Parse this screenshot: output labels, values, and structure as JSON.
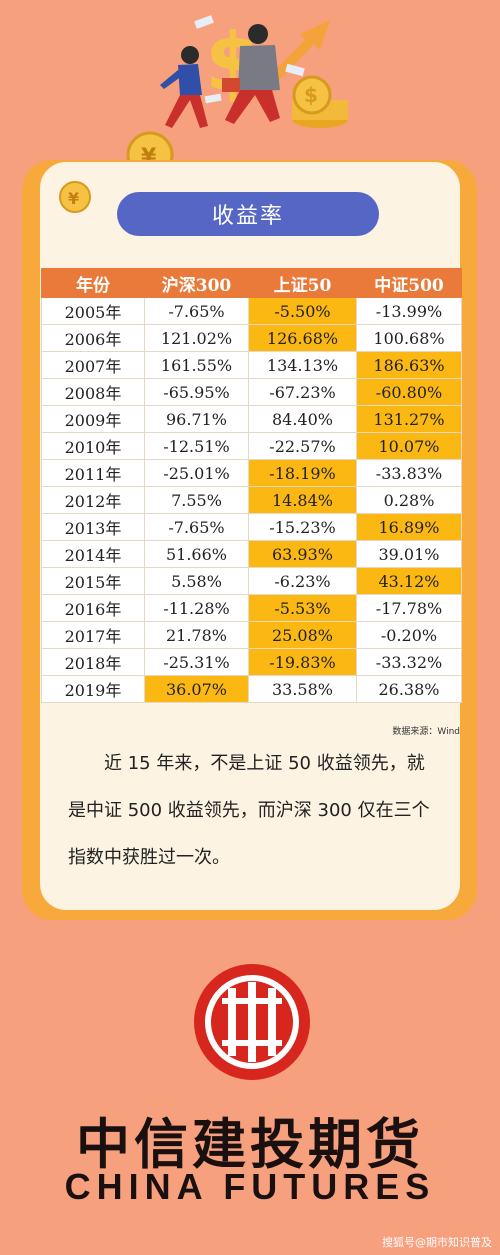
{
  "header": {
    "title": "收益率"
  },
  "table": {
    "columns": [
      "年份",
      "沪深300",
      "上证50",
      "中证500"
    ],
    "rows": [
      {
        "year": "2005年",
        "hs300": "-7.65%",
        "sz50": "-5.50%",
        "zz500": "-13.99%",
        "winner": 2
      },
      {
        "year": "2006年",
        "hs300": "121.02%",
        "sz50": "126.68%",
        "zz500": "100.68%",
        "winner": 2
      },
      {
        "year": "2007年",
        "hs300": "161.55%",
        "sz50": "134.13%",
        "zz500": "186.63%",
        "winner": 3
      },
      {
        "year": "2008年",
        "hs300": "-65.95%",
        "sz50": "-67.23%",
        "zz500": "-60.80%",
        "winner": 3
      },
      {
        "year": "2009年",
        "hs300": "96.71%",
        "sz50": "84.40%",
        "zz500": "131.27%",
        "winner": 3
      },
      {
        "year": "2010年",
        "hs300": "-12.51%",
        "sz50": "-22.57%",
        "zz500": "10.07%",
        "winner": 3
      },
      {
        "year": "2011年",
        "hs300": "-25.01%",
        "sz50": "-18.19%",
        "zz500": "-33.83%",
        "winner": 2
      },
      {
        "year": "2012年",
        "hs300": "7.55%",
        "sz50": "14.84%",
        "zz500": "0.28%",
        "winner": 2
      },
      {
        "year": "2013年",
        "hs300": "-7.65%",
        "sz50": "-15.23%",
        "zz500": "16.89%",
        "winner": 3
      },
      {
        "year": "2014年",
        "hs300": "51.66%",
        "sz50": "63.93%",
        "zz500": "39.01%",
        "winner": 2
      },
      {
        "year": "2015年",
        "hs300": "5.58%",
        "sz50": "-6.23%",
        "zz500": "43.12%",
        "winner": 3
      },
      {
        "year": "2016年",
        "hs300": "-11.28%",
        "sz50": "-5.53%",
        "zz500": "-17.78%",
        "winner": 2
      },
      {
        "year": "2017年",
        "hs300": "21.78%",
        "sz50": "25.08%",
        "zz500": "-0.20%",
        "winner": 2
      },
      {
        "year": "2018年",
        "hs300": "-25.31%",
        "sz50": "-19.83%",
        "zz500": "-33.32%",
        "winner": 2
      },
      {
        "year": "2019年",
        "hs300": "36.07%",
        "sz50": "33.58%",
        "zz500": "26.38%",
        "winner": 1
      }
    ],
    "source": "数据来源：Wind"
  },
  "paragraph": "近 15 年来，不是上证 50 收益领先，就是中证 500 收益领先，而沪深 300 仅在三个指数中获胜过一次。",
  "brand": {
    "name_cn": "中信建投期货",
    "name_en": "CHINA FUTURES"
  },
  "watermark": "搜狐号@期市知识普及",
  "colors": {
    "background": "#f7a07e",
    "card_frame": "#f7a93b",
    "header_row": "#ea7a3a",
    "highlight": "#fbb813",
    "title_pill": "#5566c4",
    "logo_red": "#d7261e"
  },
  "icons": [
    "yuan-coin-icon",
    "dollar-coin-icon",
    "upward-arrow-icon",
    "business-people-illustration",
    "china-futures-logo"
  ]
}
